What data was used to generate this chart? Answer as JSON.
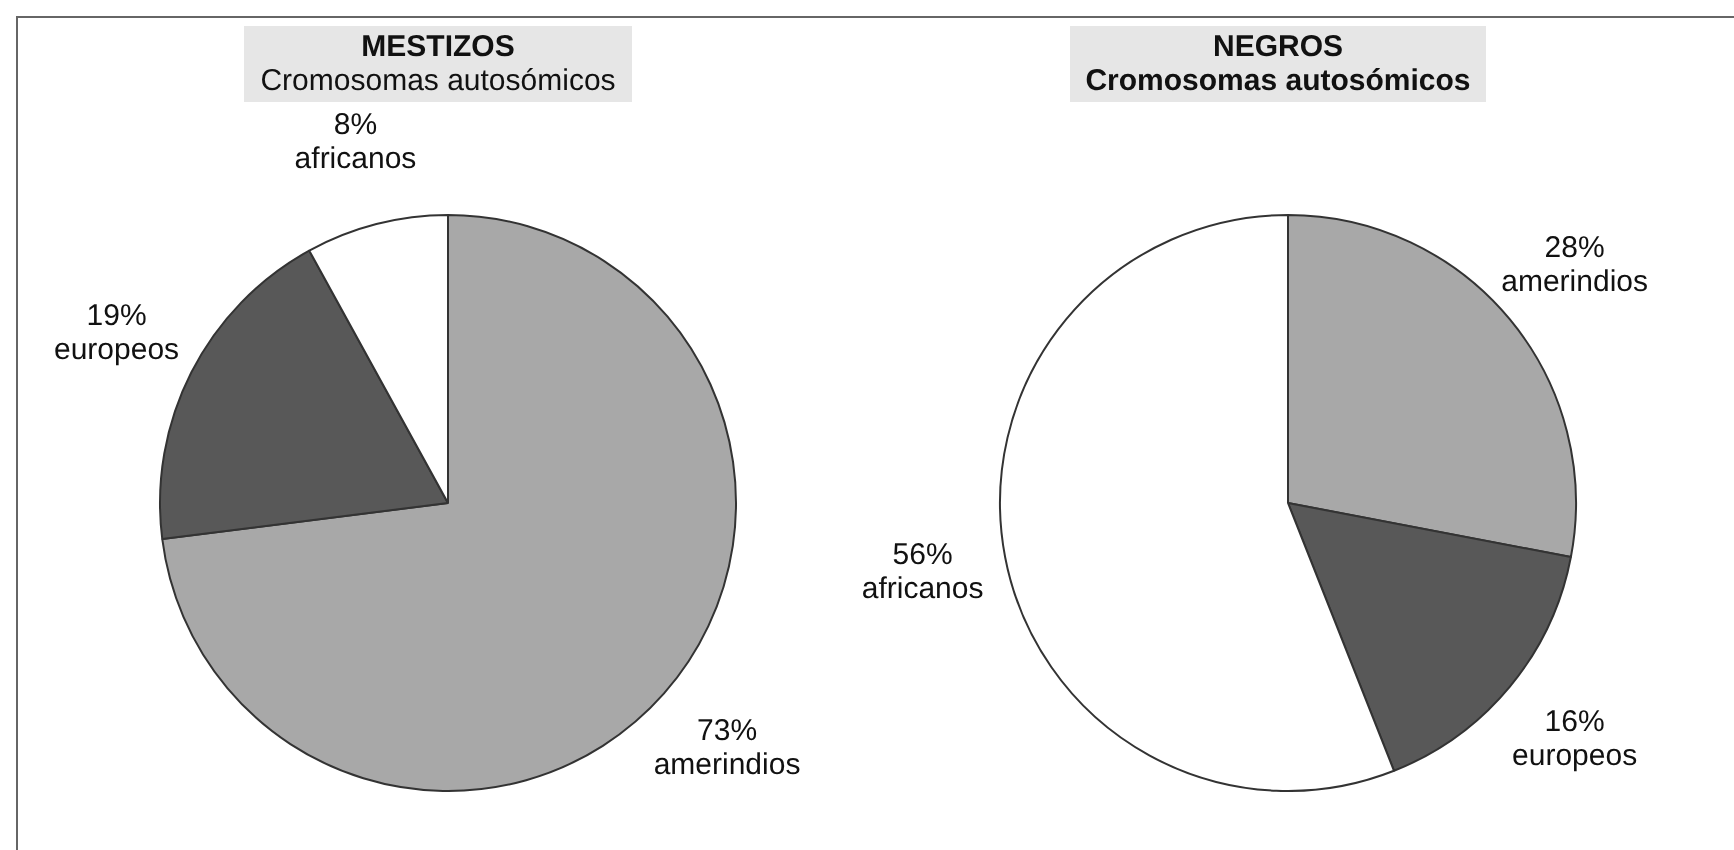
{
  "chart_data": [
    {
      "type": "pie",
      "title": "MESTIZOS",
      "subtitle": "Cromosomas autosómicos",
      "categories": [
        "amerindios",
        "europeos",
        "africanos"
      ],
      "values": [
        73,
        19,
        8
      ],
      "value_labels": [
        "73%",
        "19%",
        "8%"
      ],
      "colors": [
        "#a8a8a8",
        "#585858",
        "#ffffff"
      ],
      "legend": false
    },
    {
      "type": "pie",
      "title": "NEGROS",
      "subtitle": "Cromosomas autosómicos",
      "categories": [
        "amerindios",
        "europeos",
        "africanos"
      ],
      "values": [
        28,
        16,
        56
      ],
      "value_labels": [
        "28%",
        "16%",
        "56%"
      ],
      "colors": [
        "#a8a8a8",
        "#585858",
        "#ffffff"
      ],
      "legend": false
    }
  ]
}
